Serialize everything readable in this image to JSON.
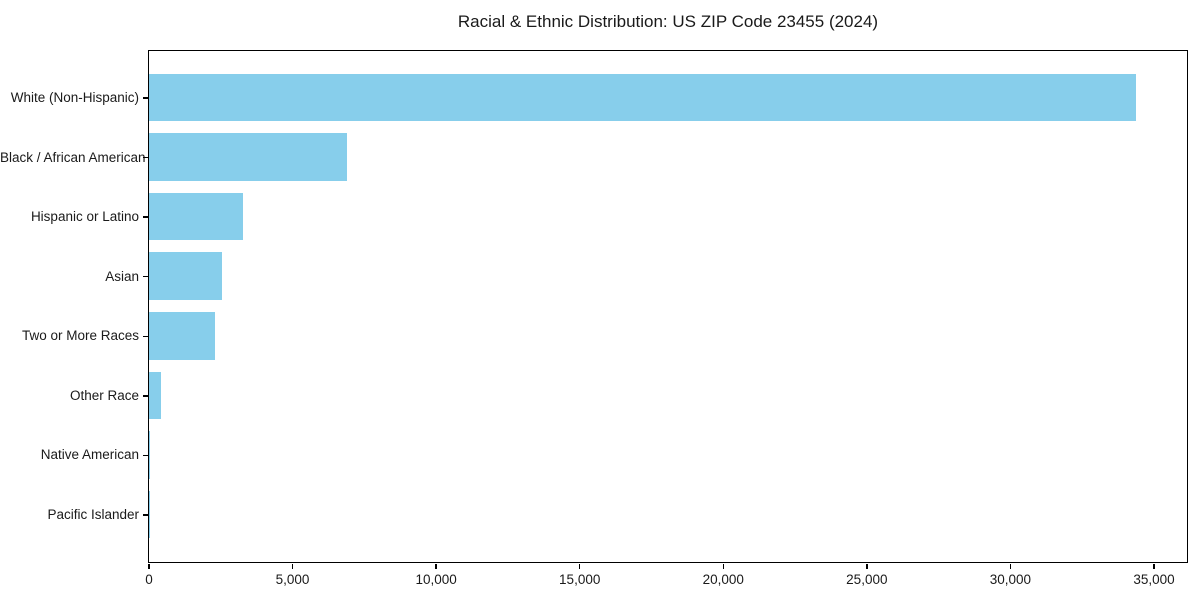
{
  "chart_data": {
    "type": "bar",
    "orientation": "horizontal",
    "title": "Racial & Ethnic Distribution: US ZIP Code 23455 (2024)",
    "categories": [
      "White (Non-Hispanic)",
      "Black / African American",
      "Hispanic or Latino",
      "Asian",
      "Two or More Races",
      "Other Race",
      "Native American",
      "Pacific Islander"
    ],
    "values": [
      34400,
      6900,
      3280,
      2550,
      2330,
      420,
      45,
      20
    ],
    "xlabel": "",
    "ylabel": "",
    "xlim": [
      0,
      36150
    ],
    "xticks": [
      0,
      5000,
      10000,
      15000,
      20000,
      25000,
      30000,
      35000
    ],
    "xtick_labels": [
      "0",
      "5,000",
      "10,000",
      "15,000",
      "20,000",
      "25,000",
      "30,000",
      "35,000"
    ],
    "bar_color": "#87CEEB",
    "bar_height_fraction": 0.8,
    "grid": false,
    "legend": null
  }
}
